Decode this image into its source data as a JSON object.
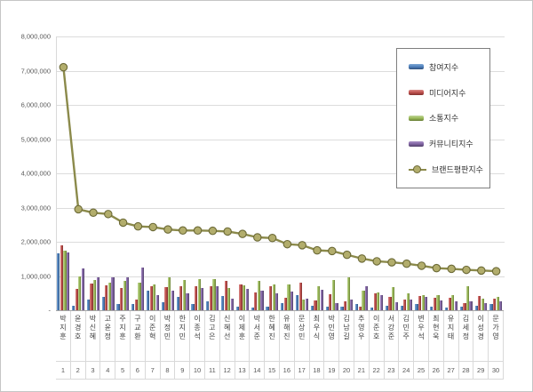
{
  "chart_data": {
    "type": "bar+line",
    "title": "",
    "categories": [
      "박지훈",
      "윤경호",
      "박신혜",
      "고윤정",
      "주지훈",
      "구교환",
      "이준혁",
      "박정민",
      "한지민",
      "이종석",
      "김고은",
      "신혜선",
      "이제훈",
      "박서준",
      "한혜진",
      "유해진",
      "문상민",
      "최우식",
      "박민영",
      "김남길",
      "추영우",
      "이준호",
      "서강준",
      "김민주",
      "변우석",
      "최현욱",
      "유지태",
      "김세정",
      "이성경",
      "문가영"
    ],
    "ranks": [
      "1",
      "2",
      "3",
      "4",
      "5",
      "6",
      "7",
      "8",
      "9",
      "10",
      "11",
      "12",
      "13",
      "14",
      "15",
      "16",
      "17",
      "18",
      "19",
      "20",
      "21",
      "22",
      "23",
      "24",
      "25",
      "26",
      "27",
      "28",
      "29",
      "30"
    ],
    "bar_series": [
      {
        "id": "participation-index",
        "name": "참여지수",
        "color": "#4F81BD",
        "light": "#7da7d4",
        "dark": "#30507a",
        "values": [
          1670000,
          130000,
          300000,
          400000,
          180000,
          180000,
          570000,
          230000,
          400000,
          180000,
          250000,
          420000,
          100000,
          80000,
          100000,
          200000,
          450000,
          140000,
          100000,
          110000,
          170000,
          80000,
          140000,
          120000,
          180000,
          110000,
          80000,
          110000,
          120000,
          170000
        ]
      },
      {
        "id": "media-index",
        "name": "미디어지수",
        "color": "#C0504D",
        "light": "#d98a88",
        "dark": "#7f302e",
        "values": [
          1890000,
          620000,
          780000,
          730000,
          650000,
          300000,
          700000,
          680000,
          700000,
          690000,
          700000,
          850000,
          750000,
          530000,
          700000,
          360000,
          800000,
          290000,
          460000,
          250000,
          110000,
          500000,
          400000,
          320000,
          420000,
          360000,
          360000,
          200000,
          420000,
          340000
        ]
      },
      {
        "id": "communication-index",
        "name": "소통지수",
        "color": "#9BBB59",
        "light": "#c2d69b",
        "dark": "#677d36",
        "values": [
          1750000,
          1000000,
          880000,
          800000,
          850000,
          800000,
          750000,
          960000,
          880000,
          920000,
          900000,
          650000,
          720000,
          860000,
          750000,
          750000,
          300000,
          690000,
          880000,
          950000,
          570000,
          520000,
          680000,
          500000,
          450000,
          430000,
          430000,
          690000,
          350000,
          400000
        ]
      },
      {
        "id": "community-index",
        "name": "커뮤니티지수",
        "color": "#8064A2",
        "light": "#a98fc5",
        "dark": "#503f68",
        "values": [
          1700000,
          1230000,
          970000,
          970000,
          960000,
          1260000,
          450000,
          570000,
          490000,
          660000,
          690000,
          330000,
          630000,
          570000,
          490000,
          550000,
          350000,
          600000,
          200000,
          320000,
          690000,
          450000,
          230000,
          320000,
          380000,
          290000,
          250000,
          250000,
          200000,
          250000
        ]
      }
    ],
    "line_series": {
      "id": "brand-reputation-index",
      "name": "브랜드평판지수",
      "color": "#8B8A4B",
      "marker_fill": "#B2AD6C",
      "marker_edge": "#6B6936",
      "values": [
        7100000,
        2950000,
        2850000,
        2810000,
        2560000,
        2450000,
        2430000,
        2360000,
        2330000,
        2330000,
        2320000,
        2300000,
        2230000,
        2130000,
        2110000,
        1930000,
        1900000,
        1750000,
        1730000,
        1620000,
        1510000,
        1430000,
        1400000,
        1360000,
        1300000,
        1230000,
        1210000,
        1180000,
        1160000,
        1140000
      ]
    },
    "y_axis": {
      "min": 0,
      "max": 8000000,
      "tick_interval": 1000000,
      "tick_labels": [
        "8,000,000",
        "7,000,000",
        "6,000,000",
        "5,000,000",
        "4,000,000",
        "3,000,000",
        "2,000,000",
        "1,000,000",
        "-"
      ]
    },
    "legend": {
      "position": "upper-right",
      "entries": [
        "참여지수",
        "미디어지수",
        "소통지수",
        "커뮤니티지수",
        "브랜드평판지수"
      ]
    },
    "grid": true,
    "xlabel": "",
    "ylabel": ""
  }
}
